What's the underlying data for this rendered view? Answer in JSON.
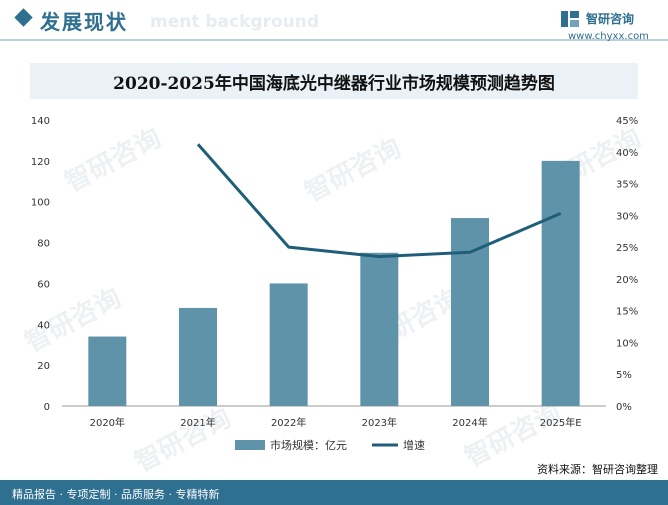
{
  "header": {
    "title": "发展现状",
    "ghost_text": "ment background"
  },
  "brand": {
    "name": "智研咨询",
    "url": "www.chyxx.com"
  },
  "chart_data": {
    "type": "bar",
    "title": "2020-2025年中国海底光中继器行业市场规模预测趋势图",
    "categories": [
      "2020年",
      "2021年",
      "2022年",
      "2023年",
      "2024年",
      "2025年E"
    ],
    "series": [
      {
        "name": "市场规模：亿元",
        "type": "bar",
        "axis": "left",
        "color": "#5f93aa",
        "values": [
          34,
          48,
          60,
          75,
          92,
          120
        ]
      },
      {
        "name": "增速",
        "type": "line",
        "axis": "right",
        "color": "#1f5e78",
        "values": [
          null,
          41.2,
          25.0,
          23.5,
          24.2,
          30.3
        ]
      }
    ],
    "y_left": {
      "min": 0,
      "max": 140,
      "ticks": [
        "0",
        "20",
        "40",
        "60",
        "80",
        "100",
        "120",
        "140"
      ]
    },
    "y_right": {
      "min": 0,
      "max": 45,
      "ticks": [
        "0%",
        "5%",
        "10%",
        "15%",
        "20%",
        "25%",
        "30%",
        "35%",
        "40%",
        "45%"
      ]
    },
    "grid": false,
    "legend": "bottom-center"
  },
  "footer": {
    "text": "精品报告 · 专项定制 · 品质服务 · 专精特新"
  },
  "source": "资料来源：智研咨询整理",
  "watermark": "智研咨询"
}
